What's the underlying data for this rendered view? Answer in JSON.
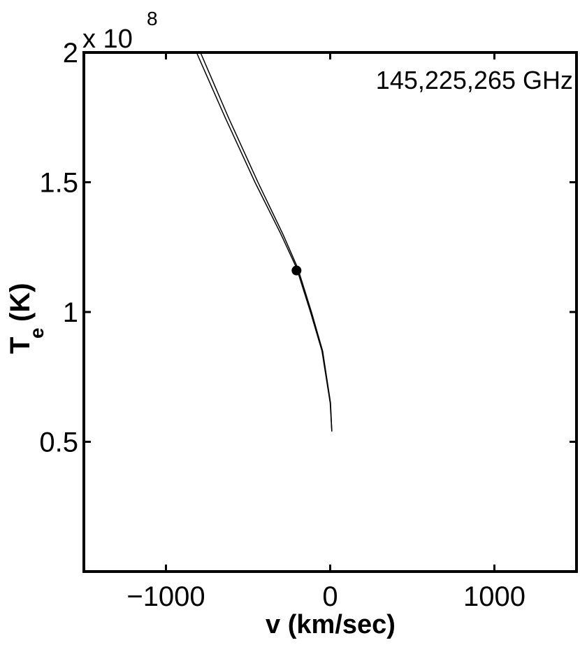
{
  "chart_data": {
    "type": "line",
    "annotation": "145,225,265 GHz",
    "x_label": "v (km/sec)",
    "y_label": {
      "main": "T",
      "subscript": "e",
      "unit": "(K)"
    },
    "y_exponent": {
      "base": "x 10",
      "power": "8"
    },
    "xlim": [
      -1500,
      1500
    ],
    "ylim": [
      0,
      200000000
    ],
    "xticks": [
      {
        "value": -1000,
        "label": "−1000"
      },
      0,
      1000
    ],
    "yticks": [
      {
        "value": 50000000,
        "label": "0.5"
      },
      {
        "value": 100000000,
        "label": "1"
      },
      {
        "value": 150000000,
        "label": "1.5"
      },
      {
        "value": 200000000,
        "label": "2"
      }
    ],
    "series": [
      {
        "color": "#000000",
        "x": [
          -814,
          -640,
          -458,
          -300,
          -205,
          -120,
          -50,
          0,
          10
        ],
        "values": [
          200000000,
          175000000,
          150000000,
          130000000,
          117000000,
          100000000,
          85000000,
          65000000,
          54000000
        ]
      },
      {
        "color": "#000000",
        "x": [
          -790,
          -620,
          -440,
          -288,
          -198,
          -114,
          -46,
          2,
          10
        ],
        "values": [
          200000000,
          175000000,
          150000000,
          130000000,
          117000000,
          100000000,
          85000000,
          65000000,
          54000000
        ]
      }
    ],
    "point": {
      "x": -205,
      "y": 116000000,
      "color": "#000000"
    }
  }
}
